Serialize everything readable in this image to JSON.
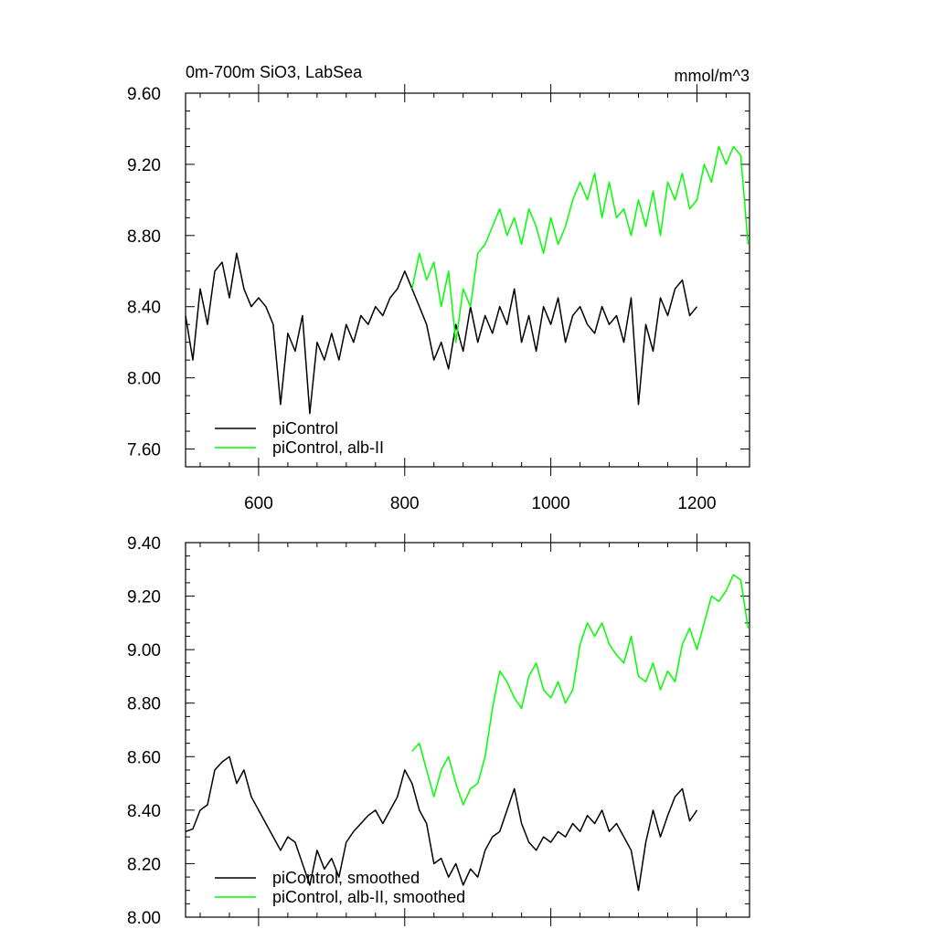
{
  "chart_data": [
    {
      "type": "line",
      "title": "0m-700m SiO3, LabSea",
      "units": "mmol/m^3",
      "xlim": [
        500,
        1272
      ],
      "ylim": [
        7.5,
        9.6
      ],
      "y_ticks": [
        "7.60",
        "8.00",
        "8.40",
        "8.80",
        "9.20",
        "9.60"
      ],
      "x_ticks": [
        "600",
        "800",
        "1000",
        "1200"
      ],
      "legend_placement": "bottom-left",
      "series": [
        {
          "name": "piControl",
          "color": "#000000",
          "x": [
            500,
            510,
            520,
            530,
            540,
            550,
            560,
            570,
            580,
            590,
            600,
            610,
            620,
            630,
            640,
            650,
            660,
            670,
            680,
            690,
            700,
            710,
            720,
            730,
            740,
            750,
            760,
            770,
            780,
            790,
            800,
            810,
            820,
            830,
            840,
            850,
            860,
            870,
            880,
            890,
            900,
            910,
            920,
            930,
            940,
            950,
            960,
            970,
            980,
            990,
            1000,
            1010,
            1020,
            1030,
            1040,
            1050,
            1060,
            1070,
            1080,
            1090,
            1100,
            1110,
            1120,
            1130,
            1140,
            1150,
            1160,
            1170,
            1180,
            1190,
            1200
          ],
          "values": [
            8.35,
            8.1,
            8.5,
            8.3,
            8.6,
            8.65,
            8.45,
            8.7,
            8.5,
            8.4,
            8.45,
            8.4,
            8.3,
            7.85,
            8.25,
            8.15,
            8.35,
            7.8,
            8.2,
            8.1,
            8.25,
            8.1,
            8.3,
            8.2,
            8.35,
            8.3,
            8.4,
            8.35,
            8.45,
            8.5,
            8.6,
            8.5,
            8.4,
            8.3,
            8.1,
            8.2,
            8.05,
            8.3,
            8.15,
            8.4,
            8.2,
            8.35,
            8.25,
            8.4,
            8.3,
            8.5,
            8.2,
            8.35,
            8.15,
            8.4,
            8.3,
            8.45,
            8.2,
            8.35,
            8.4,
            8.3,
            8.25,
            8.4,
            8.3,
            8.35,
            8.2,
            8.45,
            7.85,
            8.3,
            8.15,
            8.45,
            8.35,
            8.5,
            8.55,
            8.35,
            8.4
          ]
        },
        {
          "name": "piControl, alb-II",
          "color": "#00ff00",
          "x": [
            810,
            820,
            830,
            840,
            850,
            860,
            870,
            880,
            890,
            900,
            910,
            920,
            930,
            940,
            950,
            960,
            970,
            980,
            990,
            1000,
            1010,
            1020,
            1030,
            1040,
            1050,
            1060,
            1070,
            1080,
            1090,
            1100,
            1110,
            1120,
            1130,
            1140,
            1150,
            1160,
            1170,
            1180,
            1190,
            1200,
            1210,
            1220,
            1230,
            1240,
            1250,
            1260,
            1270
          ],
          "values": [
            8.5,
            8.7,
            8.55,
            8.65,
            8.4,
            8.6,
            8.2,
            8.5,
            8.4,
            8.7,
            8.75,
            8.85,
            8.95,
            8.8,
            8.9,
            8.75,
            8.95,
            8.85,
            8.7,
            8.9,
            8.75,
            8.85,
            9.0,
            9.1,
            9.0,
            9.15,
            8.9,
            9.1,
            8.9,
            8.95,
            8.8,
            9.0,
            8.85,
            9.05,
            8.8,
            9.1,
            9.0,
            9.15,
            8.95,
            9.0,
            9.2,
            9.1,
            9.3,
            9.2,
            9.3,
            9.25,
            8.75
          ]
        }
      ]
    },
    {
      "type": "line",
      "xlim": [
        500,
        1272
      ],
      "ylim": [
        8.0,
        9.4
      ],
      "y_ticks": [
        "8.00",
        "8.20",
        "8.40",
        "8.60",
        "8.80",
        "9.00",
        "9.20",
        "9.40"
      ],
      "legend_placement": "bottom-left",
      "series": [
        {
          "name": "piControl, smoothed",
          "color": "#000000",
          "x": [
            500,
            510,
            520,
            530,
            540,
            550,
            560,
            570,
            580,
            590,
            600,
            610,
            620,
            630,
            640,
            650,
            660,
            670,
            680,
            690,
            700,
            710,
            720,
            730,
            740,
            750,
            760,
            770,
            780,
            790,
            800,
            810,
            820,
            830,
            840,
            850,
            860,
            870,
            880,
            890,
            900,
            910,
            920,
            930,
            940,
            950,
            960,
            970,
            980,
            990,
            1000,
            1010,
            1020,
            1030,
            1040,
            1050,
            1060,
            1070,
            1080,
            1090,
            1100,
            1110,
            1120,
            1130,
            1140,
            1150,
            1160,
            1170,
            1180,
            1190,
            1200
          ],
          "values": [
            8.32,
            8.33,
            8.4,
            8.42,
            8.55,
            8.58,
            8.6,
            8.5,
            8.55,
            8.45,
            8.4,
            8.35,
            8.3,
            8.25,
            8.3,
            8.28,
            8.2,
            8.12,
            8.25,
            8.18,
            8.22,
            8.15,
            8.28,
            8.32,
            8.35,
            8.38,
            8.4,
            8.35,
            8.4,
            8.45,
            8.55,
            8.5,
            8.4,
            8.35,
            8.2,
            8.22,
            8.15,
            8.2,
            8.12,
            8.18,
            8.15,
            8.25,
            8.3,
            8.32,
            8.4,
            8.48,
            8.35,
            8.28,
            8.25,
            8.3,
            8.28,
            8.32,
            8.3,
            8.35,
            8.32,
            8.38,
            8.35,
            8.4,
            8.32,
            8.35,
            8.3,
            8.25,
            8.1,
            8.28,
            8.4,
            8.3,
            8.38,
            8.45,
            8.48,
            8.36,
            8.4
          ]
        },
        {
          "name": "piControl, alb-II, smoothed",
          "color": "#00ff00",
          "x": [
            810,
            820,
            830,
            840,
            850,
            860,
            870,
            880,
            890,
            900,
            910,
            920,
            930,
            940,
            950,
            960,
            970,
            980,
            990,
            1000,
            1010,
            1020,
            1030,
            1040,
            1050,
            1060,
            1070,
            1080,
            1090,
            1100,
            1110,
            1120,
            1130,
            1140,
            1150,
            1160,
            1170,
            1180,
            1190,
            1200,
            1210,
            1220,
            1230,
            1240,
            1250,
            1260,
            1270
          ],
          "values": [
            8.62,
            8.65,
            8.55,
            8.45,
            8.55,
            8.6,
            8.5,
            8.42,
            8.48,
            8.5,
            8.6,
            8.78,
            8.92,
            8.88,
            8.82,
            8.78,
            8.9,
            8.95,
            8.85,
            8.82,
            8.88,
            8.8,
            8.85,
            9.02,
            9.1,
            9.05,
            9.1,
            9.02,
            8.98,
            8.95,
            9.05,
            8.9,
            8.88,
            8.95,
            8.85,
            8.92,
            8.88,
            9.02,
            9.08,
            9.0,
            9.1,
            9.2,
            9.18,
            9.22,
            9.28,
            9.26,
            9.08
          ]
        }
      ]
    }
  ]
}
